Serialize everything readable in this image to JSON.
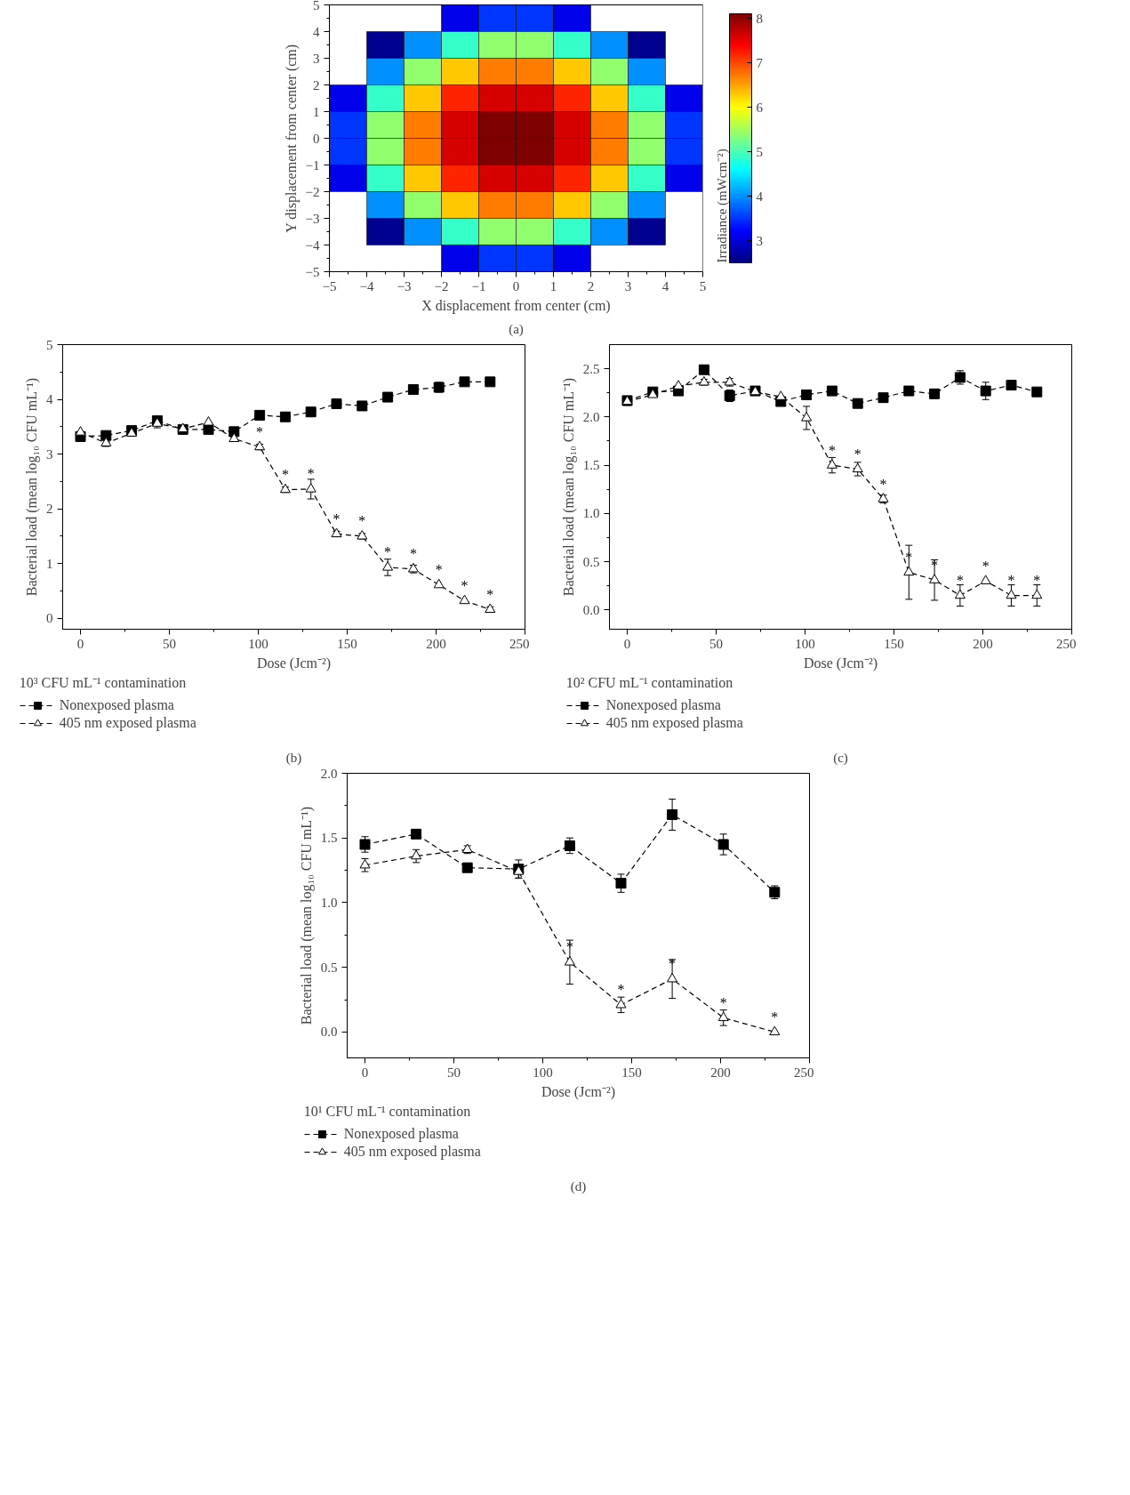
{
  "chart_data": [
    {
      "type": "heatmap",
      "xlabel": "X displacement from center (cm)",
      "ylabel": "Y displacement from center (cm)",
      "clabel": "Irradiance (mWcm⁻²)",
      "x": [
        -4.5,
        -3.5,
        -2.5,
        -1.5,
        -0.5,
        0.5,
        1.5,
        2.5,
        3.5,
        4.5
      ],
      "y": [
        4.5,
        3.5,
        2.5,
        1.5,
        0.5,
        -0.5,
        -1.5,
        -2.5,
        -3.5,
        -4.5
      ],
      "xlim": [
        -5,
        5
      ],
      "ylim": [
        -5,
        5
      ],
      "xticks": [
        -5,
        -4,
        -3,
        -2,
        -1,
        0,
        1,
        2,
        3,
        4,
        5
      ],
      "yticks": [
        -5,
        -4,
        -3,
        -2,
        -1,
        0,
        1,
        2,
        3,
        4,
        5
      ],
      "cells": [
        [
          null,
          null,
          null,
          3.1,
          3.5,
          3.5,
          3.1,
          null,
          null,
          null
        ],
        [
          null,
          2.6,
          4.0,
          4.9,
          5.4,
          5.4,
          4.9,
          4.0,
          2.6,
          null
        ],
        [
          null,
          4.0,
          5.4,
          6.3,
          6.7,
          6.7,
          6.3,
          5.4,
          4.0,
          null
        ],
        [
          3.1,
          4.9,
          6.3,
          7.2,
          7.6,
          7.6,
          7.2,
          6.3,
          4.9,
          3.1
        ],
        [
          3.5,
          5.4,
          6.7,
          7.6,
          8.1,
          8.1,
          7.6,
          6.7,
          5.4,
          3.5
        ],
        [
          3.5,
          5.4,
          6.7,
          7.6,
          8.1,
          8.1,
          7.6,
          6.7,
          5.4,
          3.5
        ],
        [
          3.1,
          4.9,
          6.3,
          7.2,
          7.6,
          7.6,
          7.2,
          6.3,
          4.9,
          3.1
        ],
        [
          null,
          4.0,
          5.4,
          6.3,
          6.7,
          6.7,
          6.3,
          5.4,
          4.0,
          null
        ],
        [
          null,
          2.6,
          4.0,
          4.9,
          5.4,
          5.4,
          4.9,
          4.0,
          2.6,
          null
        ],
        [
          null,
          null,
          null,
          3.1,
          3.5,
          3.5,
          3.1,
          null,
          null,
          null
        ]
      ],
      "clim": [
        2.5,
        8.1
      ],
      "cticks": [
        3,
        4,
        5,
        6,
        7,
        8
      ],
      "annotations": [
        "(a)"
      ]
    },
    {
      "type": "line",
      "xlabel": "Dose (Jcm⁻²)",
      "ylabel": "Bacterial load (mean log₁₀ CFU mL⁻¹)",
      "legend": "bottom",
      "legend_title": "10³ CFU mL⁻¹ contamination",
      "line_style": "dashed",
      "x": [
        0,
        14.4,
        28.8,
        43.2,
        57.6,
        72,
        86.4,
        100.8,
        115.2,
        129.6,
        144,
        158.4,
        172.8,
        187.2,
        201.6,
        216,
        230.4
      ],
      "xlim": [
        -10,
        250
      ],
      "ylim": [
        -0.2,
        5
      ],
      "xticks": [
        0,
        50,
        100,
        150,
        200,
        250
      ],
      "yticks": [
        0,
        1,
        2,
        3,
        4,
        5
      ],
      "series": [
        {
          "name": "Nonexposed plasma",
          "color": "#000000",
          "marker": "square",
          "values": [
            3.32,
            3.34,
            3.43,
            3.61,
            3.45,
            3.45,
            3.41,
            3.71,
            3.68,
            3.77,
            3.92,
            3.88,
            4.04,
            4.18,
            4.22,
            4.32,
            4.32
          ],
          "errors": [
            null,
            null,
            null,
            null,
            null,
            null,
            null,
            null,
            null,
            null,
            null,
            null,
            null,
            null,
            0.09,
            null,
            null
          ]
        },
        {
          "name": "405 nm exposed plasma",
          "color": "#000000",
          "marker": "triangle",
          "values": [
            3.4,
            3.2,
            3.38,
            3.56,
            3.46,
            3.58,
            3.28,
            3.13,
            2.35,
            2.36,
            1.54,
            1.5,
            0.93,
            0.9,
            0.61,
            0.32,
            0.16
          ],
          "errors": [
            null,
            0.06,
            0.05,
            0.08,
            null,
            null,
            0.05,
            0.05,
            0.05,
            0.18,
            0.05,
            0.05,
            0.15,
            0.07,
            null,
            null,
            0.05
          ]
        }
      ],
      "annotations": [
        {
          "text": "*",
          "x": 100.8,
          "y": 3.13
        },
        {
          "text": "*",
          "x": 115.2,
          "y": 2.35
        },
        {
          "text": "*",
          "x": 129.6,
          "y": 2.36
        },
        {
          "text": "*",
          "x": 144,
          "y": 1.54
        },
        {
          "text": "*",
          "x": 158.4,
          "y": 1.5
        },
        {
          "text": "*",
          "x": 172.8,
          "y": 0.93
        },
        {
          "text": "*",
          "x": 187.2,
          "y": 0.9
        },
        {
          "text": "*",
          "x": 201.6,
          "y": 0.61
        },
        {
          "text": "*",
          "x": 216,
          "y": 0.32
        },
        {
          "text": "*",
          "x": 230.4,
          "y": 0.16
        },
        "(b)"
      ]
    },
    {
      "type": "line",
      "xlabel": "Dose (Jcm⁻²)",
      "ylabel": "Bacterial load (mean log₁₀ CFU mL⁻¹)",
      "legend": "bottom",
      "legend_title": "10² CFU mL⁻¹ contamination",
      "line_style": "dashed",
      "x": [
        0,
        14.4,
        28.8,
        43.2,
        57.6,
        72,
        86.4,
        100.8,
        115.2,
        129.6,
        144,
        158.4,
        172.8,
        187.2,
        201.6,
        216,
        230.4
      ],
      "xlim": [
        -10,
        250
      ],
      "ylim": [
        -0.2,
        2.75
      ],
      "xticks": [
        0,
        50,
        100,
        150,
        200,
        250
      ],
      "yticks": [
        {
          "value": 0,
          "label": "0.0"
        },
        {
          "value": 0.5,
          "label": "0.5"
        },
        {
          "value": 1,
          "label": "1.0"
        },
        {
          "value": 1.5,
          "label": "1.5"
        },
        {
          "value": 2,
          "label": "2.0"
        },
        {
          "value": 2.5,
          "label": "2.5"
        }
      ],
      "series": [
        {
          "name": "Nonexposed plasma",
          "color": "#000000",
          "marker": "square",
          "values": [
            2.17,
            2.26,
            2.27,
            2.49,
            2.22,
            2.27,
            2.16,
            2.23,
            2.27,
            2.14,
            2.2,
            2.27,
            2.24,
            2.41,
            2.27,
            2.33,
            2.26
          ],
          "errors": [
            0.03,
            null,
            0.04,
            null,
            0.06,
            null,
            null,
            null,
            null,
            0.04,
            null,
            null,
            null,
            0.07,
            0.09,
            null,
            null
          ]
        },
        {
          "name": "405 nm exposed plasma",
          "color": "#000000",
          "marker": "triangle",
          "values": [
            2.16,
            2.23,
            2.32,
            2.36,
            2.36,
            2.26,
            2.21,
            1.99,
            1.5,
            1.46,
            1.15,
            0.39,
            0.31,
            0.15,
            0.3,
            0.15,
            0.15
          ],
          "errors": [
            0.04,
            null,
            null,
            0.03,
            0.04,
            null,
            null,
            0.12,
            0.08,
            0.07,
            0.04,
            0.28,
            0.21,
            0.11,
            null,
            0.11,
            0.11
          ]
        }
      ],
      "annotations": [
        {
          "text": "*",
          "x": 115.2,
          "y": 1.5
        },
        {
          "text": "*",
          "x": 129.6,
          "y": 1.46
        },
        {
          "text": "*",
          "x": 144,
          "y": 1.15
        },
        {
          "text": "*",
          "x": 158.4,
          "y": 0.39
        },
        {
          "text": "*",
          "x": 172.8,
          "y": 0.31
        },
        {
          "text": "*",
          "x": 187.2,
          "y": 0.15
        },
        {
          "text": "*",
          "x": 201.6,
          "y": 0.3
        },
        {
          "text": "*",
          "x": 216,
          "y": 0.15
        },
        {
          "text": "*",
          "x": 230.4,
          "y": 0.15
        },
        "(c)"
      ]
    },
    {
      "type": "line",
      "xlabel": "Dose (Jcm⁻²)",
      "ylabel": "Bacterial load (mean log₁₀ CFU mL⁻¹)",
      "legend": "bottom",
      "legend_title": "10¹ CFU mL⁻¹ contamination",
      "line_style": "dashed",
      "x": [
        0,
        28.8,
        57.6,
        86.4,
        115.2,
        144,
        172.8,
        201.6,
        230.4
      ],
      "xlim": [
        -10,
        250
      ],
      "ylim": [
        -0.2,
        2.0
      ],
      "xticks": [
        0,
        50,
        100,
        150,
        200,
        250
      ],
      "yticks": [
        {
          "value": 0,
          "label": "0.0"
        },
        {
          "value": 0.5,
          "label": "0.5"
        },
        {
          "value": 1,
          "label": "1.0"
        },
        {
          "value": 1.5,
          "label": "1.5"
        },
        {
          "value": 2,
          "label": "2.0"
        }
      ],
      "series": [
        {
          "name": "Nonexposed plasma",
          "color": "#000000",
          "marker": "square",
          "values": [
            1.45,
            1.53,
            1.27,
            1.26,
            1.44,
            1.15,
            1.68,
            1.45,
            1.08
          ],
          "errors": [
            0.06,
            null,
            null,
            0.07,
            0.06,
            0.07,
            0.12,
            0.08,
            0.05
          ]
        },
        {
          "name": "405 nm exposed plasma",
          "color": "#000000",
          "marker": "triangle",
          "values": [
            1.29,
            1.36,
            1.41,
            1.24,
            0.54,
            0.21,
            0.41,
            0.11,
            0.0
          ],
          "errors": [
            0.05,
            0.05,
            0.03,
            0.05,
            0.17,
            0.06,
            0.15,
            0.06,
            null
          ]
        }
      ],
      "annotations": [
        {
          "text": "*",
          "x": 115.2,
          "y": 0.54
        },
        {
          "text": "*",
          "x": 144,
          "y": 0.21
        },
        {
          "text": "*",
          "x": 172.8,
          "y": 0.41
        },
        {
          "text": "*",
          "x": 201.6,
          "y": 0.11
        },
        {
          "text": "*",
          "x": 230.4,
          "y": 0.0
        },
        "(d)"
      ]
    }
  ]
}
